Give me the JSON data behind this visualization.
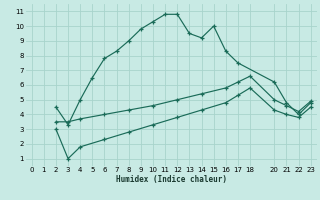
{
  "xlabel": "Humidex (Indice chaleur)",
  "bg_color": "#c8eae4",
  "line_color": "#1a6b58",
  "grid_color": "#a8d4cc",
  "xlim": [
    -0.5,
    23.5
  ],
  "ylim": [
    0.5,
    11.5
  ],
  "xticks": [
    0,
    1,
    2,
    3,
    4,
    5,
    6,
    7,
    8,
    9,
    10,
    11,
    12,
    13,
    14,
    15,
    16,
    17,
    18,
    20,
    21,
    22,
    23
  ],
  "yticks": [
    1,
    2,
    3,
    4,
    5,
    6,
    7,
    8,
    9,
    10,
    11
  ],
  "line1_x": [
    2,
    3,
    4,
    5,
    6,
    7,
    8,
    9,
    10,
    11,
    12,
    13,
    14,
    15,
    16,
    17,
    20,
    21,
    22,
    23
  ],
  "line1_y": [
    4.5,
    3.3,
    5.0,
    6.5,
    7.8,
    8.3,
    9.0,
    9.8,
    10.3,
    10.8,
    10.8,
    9.5,
    9.2,
    10.0,
    8.3,
    7.5,
    6.2,
    4.8,
    4.0,
    4.8
  ],
  "line2_x": [
    2,
    3,
    4,
    6,
    8,
    10,
    12,
    14,
    16,
    17,
    18,
    20,
    21,
    22,
    23
  ],
  "line2_y": [
    3.5,
    3.5,
    3.7,
    4.0,
    4.3,
    4.6,
    5.0,
    5.4,
    5.8,
    6.2,
    6.6,
    5.0,
    4.6,
    4.2,
    4.9
  ],
  "line3_x": [
    2,
    3,
    4,
    6,
    8,
    10,
    12,
    14,
    16,
    17,
    18,
    20,
    21,
    22,
    23
  ],
  "line3_y": [
    3.0,
    1.0,
    1.8,
    2.3,
    2.8,
    3.3,
    3.8,
    4.3,
    4.8,
    5.3,
    5.8,
    4.3,
    4.0,
    3.8,
    4.5
  ]
}
